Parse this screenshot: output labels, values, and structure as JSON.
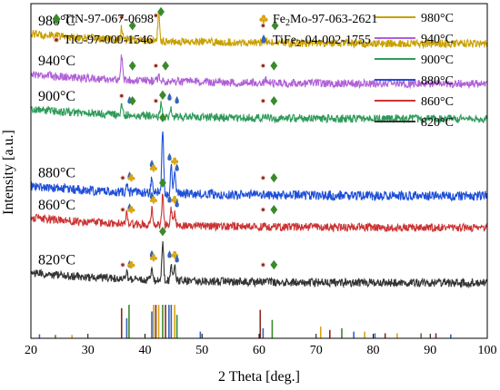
{
  "chart_data": {
    "type": "line",
    "xlabel": "2 Theta [deg.]",
    "ylabel": "Intensity [a.u.]",
    "xlim": [
      20,
      100
    ],
    "x_ticks": [
      20,
      30,
      40,
      50,
      60,
      70,
      80,
      90,
      100
    ],
    "grid": false,
    "series": [
      {
        "name": "980°C",
        "label": "980°C",
        "color": "#c8a000",
        "baseline": 0.88,
        "noise": 0.012,
        "peaks": [
          [
            35.9,
            0.035
          ],
          [
            42.4,
            0.08
          ],
          [
            61.1,
            0.015
          ]
        ]
      },
      {
        "name": "940°C",
        "label": "940°C",
        "color": "#b060d8",
        "baseline": 0.76,
        "noise": 0.012,
        "peaks": [
          [
            35.9,
            0.07
          ],
          [
            42.4,
            0.02
          ],
          [
            61.1,
            0.01
          ]
        ]
      },
      {
        "name": "900°C",
        "label": "900°C",
        "color": "#2e9a5a",
        "baseline": 0.655,
        "noise": 0.012,
        "peaks": [
          [
            35.9,
            0.025
          ],
          [
            42.8,
            0.035
          ],
          [
            44.6,
            0.025
          ]
        ]
      },
      {
        "name": "880°C",
        "label": "880°C",
        "color": "#1f4fd8",
        "baseline": 0.425,
        "noise": 0.014,
        "peaks": [
          [
            36.8,
            0.03
          ],
          [
            41.2,
            0.05
          ],
          [
            43.1,
            0.19
          ],
          [
            44.6,
            0.09
          ],
          [
            45.2,
            0.06
          ]
        ]
      },
      {
        "name": "860°C",
        "label": "860°C",
        "color": "#cc3333",
        "baseline": 0.33,
        "noise": 0.012,
        "peaks": [
          [
            36.8,
            0.03
          ],
          [
            41.2,
            0.05
          ],
          [
            43.1,
            0.09
          ],
          [
            44.6,
            0.05
          ],
          [
            45.2,
            0.04
          ]
        ]
      },
      {
        "name": "820°C",
        "label": "820°C",
        "color": "#333333",
        "baseline": 0.165,
        "noise": 0.012,
        "peaks": [
          [
            36.8,
            0.02
          ],
          [
            41.2,
            0.04
          ],
          [
            43.1,
            0.11
          ],
          [
            44.6,
            0.05
          ],
          [
            45.2,
            0.04
          ]
        ]
      }
    ],
    "legend": [
      {
        "label": "TiN-97-067-0698",
        "marker": "diamond",
        "color": "#3a8a2a"
      },
      {
        "label_main": "Fe",
        "label_sub": "2",
        "label_rest": "Mo-97-063-2621",
        "marker": "club",
        "color": "#d9a514"
      },
      {
        "label": "TiC-97-000-1546",
        "marker": "circle",
        "color": "#8b2a1a"
      },
      {
        "label_main": "TiFe",
        "label_sub": "2",
        "label_rest": "-04-002-1755",
        "marker": "drop",
        "color": "#3565b8"
      }
    ],
    "reference_sticks": [
      {
        "x": 35.9,
        "h": 0.09,
        "color": "#8b2a1a"
      },
      {
        "x": 36.8,
        "h": 0.06,
        "color": "#3565b8"
      },
      {
        "x": 37.2,
        "h": 0.1,
        "color": "#3a8a2a"
      },
      {
        "x": 41.2,
        "h": 0.08,
        "color": "#3565b8"
      },
      {
        "x": 41.5,
        "h": 0.1,
        "color": "#d9a514"
      },
      {
        "x": 41.9,
        "h": 0.1,
        "color": "#8b2a1a"
      },
      {
        "x": 42.4,
        "h": 0.1,
        "color": "#d9a514"
      },
      {
        "x": 43.1,
        "h": 0.1,
        "color": "#3a8a2a"
      },
      {
        "x": 43.6,
        "h": 0.1,
        "color": "#8b2a1a"
      },
      {
        "x": 44.2,
        "h": 0.1,
        "color": "#3565b8"
      },
      {
        "x": 44.6,
        "h": 0.1,
        "color": "#3565b8"
      },
      {
        "x": 45.2,
        "h": 0.1,
        "color": "#d9a514"
      },
      {
        "x": 45.6,
        "h": 0.07,
        "color": "#3a8a2a"
      },
      {
        "x": 49.7,
        "h": 0.02,
        "color": "#3565b8"
      },
      {
        "x": 60.2,
        "h": 0.085,
        "color": "#8b2a1a"
      },
      {
        "x": 60.7,
        "h": 0.03,
        "color": "#3565b8"
      },
      {
        "x": 62.3,
        "h": 0.055,
        "color": "#3a8a2a"
      },
      {
        "x": 70.8,
        "h": 0.035,
        "color": "#d9a514"
      },
      {
        "x": 72.4,
        "h": 0.025,
        "color": "#8b2a1a"
      },
      {
        "x": 74.5,
        "h": 0.03,
        "color": "#3a8a2a"
      },
      {
        "x": 76.6,
        "h": 0.02,
        "color": "#3565b8"
      },
      {
        "x": 78.5,
        "h": 0.02,
        "color": "#d9a514"
      },
      {
        "x": 80.3,
        "h": 0.015,
        "color": "#3565b8"
      },
      {
        "x": 82.1,
        "h": 0.015,
        "color": "#8b2a1a"
      },
      {
        "x": 84.2,
        "h": 0.015,
        "color": "#d9a514"
      },
      {
        "x": 88.4,
        "h": 0.015,
        "color": "#3a8a2a"
      },
      {
        "x": 91.0,
        "h": 0.015,
        "color": "#8b2a1a"
      },
      {
        "x": 93.6,
        "h": 0.012,
        "color": "#3565b8"
      },
      {
        "x": 21.5,
        "h": 0.012,
        "color": "#3565b8"
      },
      {
        "x": 24.3,
        "h": 0.01,
        "color": "#3a8a2a"
      },
      {
        "x": 27.2,
        "h": 0.01,
        "color": "#d9a514"
      }
    ],
    "peak_markers": [
      {
        "series": "980°C",
        "x": 35.9,
        "marker": "circle"
      },
      {
        "series": "980°C",
        "x": 37.8,
        "marker": "diamond"
      },
      {
        "series": "980°C",
        "x": 41.9,
        "marker": "circle"
      },
      {
        "series": "980°C",
        "x": 42.8,
        "marker": "diamond"
      },
      {
        "series": "980°C",
        "x": 60.7,
        "marker": "circle"
      },
      {
        "series": "980°C",
        "x": 62.8,
        "marker": "diamond"
      },
      {
        "series": "940°C",
        "x": 37.8,
        "marker": "diamond"
      },
      {
        "series": "940°C",
        "x": 41.9,
        "marker": "circle"
      },
      {
        "series": "940°C",
        "x": 43.6,
        "marker": "diamond"
      },
      {
        "series": "940°C",
        "x": 60.7,
        "marker": "circle"
      },
      {
        "series": "940°C",
        "x": 62.6,
        "marker": "diamond"
      },
      {
        "series": "900°C",
        "x": 35.9,
        "marker": "circle"
      },
      {
        "series": "900°C",
        "x": 37.3,
        "marker": "drop"
      },
      {
        "series": "900°C",
        "x": 37.8,
        "marker": "diamond"
      },
      {
        "series": "900°C",
        "x": 41.9,
        "marker": "circle"
      },
      {
        "series": "900°C",
        "x": 43.1,
        "marker": "diamond"
      },
      {
        "series": "900°C",
        "x": 44.3,
        "marker": "drop"
      },
      {
        "series": "900°C",
        "x": 45.6,
        "marker": "drop"
      },
      {
        "series": "900°C",
        "x": 60.7,
        "marker": "circle"
      },
      {
        "series": "900°C",
        "x": 62.6,
        "marker": "diamond"
      },
      {
        "series": "880°C",
        "x": 36.1,
        "marker": "circle"
      },
      {
        "series": "880°C",
        "x": 37.3,
        "marker": "drop"
      },
      {
        "series": "880°C",
        "x": 37.6,
        "marker": "club"
      },
      {
        "series": "880°C",
        "x": 41.2,
        "marker": "drop"
      },
      {
        "series": "880°C",
        "x": 41.5,
        "marker": "club"
      },
      {
        "series": "880°C",
        "x": 43.1,
        "marker": "diamond"
      },
      {
        "series": "880°C",
        "x": 44.3,
        "marker": "drop"
      },
      {
        "series": "880°C",
        "x": 45.2,
        "marker": "club"
      },
      {
        "series": "880°C",
        "x": 45.6,
        "marker": "drop"
      },
      {
        "series": "880°C",
        "x": 60.7,
        "marker": "circle"
      },
      {
        "series": "880°C",
        "x": 62.6,
        "marker": "diamond"
      },
      {
        "series": "860°C",
        "x": 36.1,
        "marker": "circle"
      },
      {
        "series": "860°C",
        "x": 37.3,
        "marker": "drop"
      },
      {
        "series": "860°C",
        "x": 37.6,
        "marker": "club"
      },
      {
        "series": "860°C",
        "x": 41.2,
        "marker": "drop"
      },
      {
        "series": "860°C",
        "x": 41.5,
        "marker": "club"
      },
      {
        "series": "860°C",
        "x": 43.1,
        "marker": "diamond"
      },
      {
        "series": "860°C",
        "x": 44.3,
        "marker": "drop"
      },
      {
        "series": "860°C",
        "x": 45.2,
        "marker": "club"
      },
      {
        "series": "860°C",
        "x": 45.6,
        "marker": "drop"
      },
      {
        "series": "860°C",
        "x": 60.7,
        "marker": "circle"
      },
      {
        "series": "860°C",
        "x": 62.6,
        "marker": "diamond"
      },
      {
        "series": "820°C",
        "x": 36.1,
        "marker": "circle"
      },
      {
        "series": "820°C",
        "x": 37.3,
        "marker": "drop"
      },
      {
        "series": "820°C",
        "x": 37.6,
        "marker": "club"
      },
      {
        "series": "820°C",
        "x": 41.2,
        "marker": "drop"
      },
      {
        "series": "820°C",
        "x": 41.5,
        "marker": "club"
      },
      {
        "series": "820°C",
        "x": 43.1,
        "marker": "diamond"
      },
      {
        "series": "820°C",
        "x": 44.3,
        "marker": "drop"
      },
      {
        "series": "820°C",
        "x": 45.2,
        "marker": "club"
      },
      {
        "series": "820°C",
        "x": 45.6,
        "marker": "drop"
      },
      {
        "series": "820°C",
        "x": 60.7,
        "marker": "circle"
      },
      {
        "series": "820°C",
        "x": 62.6,
        "marker": "diamond"
      }
    ]
  }
}
